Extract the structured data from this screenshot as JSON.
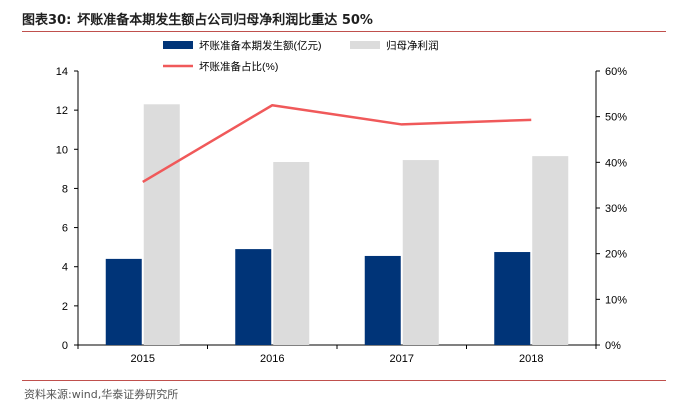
{
  "header": {
    "figure_label": "图表30:",
    "title": "坏账准备本期发生额占公司归母净利润比重达 50%"
  },
  "footer": {
    "source": "资料来源:wind,华泰证券研究所"
  },
  "colors": {
    "bar_primary": "#003478",
    "bar_secondary": "#dcdcdc",
    "line": "#f0595a",
    "accent_rule": "#c0504d"
  },
  "chart_data": {
    "type": "bar",
    "categories": [
      "2015",
      "2016",
      "2017",
      "2018"
    ],
    "series": [
      {
        "name": "坏账准备本期发生额(亿元)",
        "type": "bar",
        "axis": "left",
        "values": [
          4.4,
          4.9,
          4.55,
          4.75
        ]
      },
      {
        "name": "归母净利润",
        "type": "bar",
        "axis": "left",
        "values": [
          12.3,
          9.35,
          9.45,
          9.65
        ]
      },
      {
        "name": "坏账准备占比(%)",
        "type": "line",
        "axis": "right",
        "values": [
          35.7,
          52.5,
          48.3,
          49.3
        ]
      }
    ],
    "y_left": {
      "min": 0,
      "max": 14,
      "ticks": [
        "0",
        "2",
        "4",
        "6",
        "8",
        "10",
        "12",
        "14"
      ]
    },
    "y_right": {
      "min": 0,
      "max": 60,
      "ticks": [
        "0%",
        "10%",
        "20%",
        "30%",
        "40%",
        "50%",
        "60%"
      ]
    },
    "grid": false,
    "legend_position": "top"
  }
}
